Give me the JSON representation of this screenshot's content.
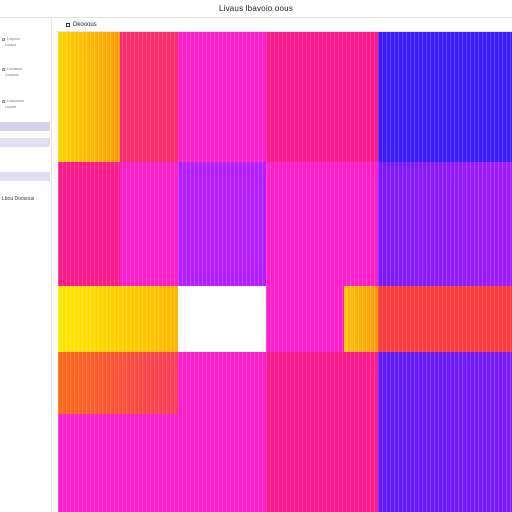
{
  "window": {
    "title": "Livaus lbavoio oous"
  },
  "sidebar": {
    "groups": [
      {
        "label": "Lorpuus",
        "sub": "Lossos"
      },
      {
        "label": "Lovoseos",
        "sub": "Cosouus"
      },
      {
        "label": "Lossousos",
        "sub": "Lsouve"
      }
    ],
    "link": "Lbou Doosous"
  },
  "panel": {
    "title": "Dkooous"
  },
  "heatmap": {
    "stripes": true,
    "cells": [
      {
        "row": 0,
        "col": 0,
        "colors": [
          "#ffd600",
          "#ff9d0a"
        ]
      },
      {
        "row": 0,
        "col": 1,
        "colors": [
          "#ff2a6e",
          "#ff2a6e"
        ]
      },
      {
        "row": 0,
        "col": 2,
        "colors": [
          "#ff1ec8",
          "#ff1ec8"
        ]
      },
      {
        "row": 0,
        "col": 3,
        "colors": [
          "#ff1a8c",
          "#ff1a8c"
        ]
      },
      {
        "row": 0,
        "col": 4,
        "colors": [
          "#3b1aff",
          "#3b1aff"
        ]
      },
      {
        "row": 1,
        "col": 0,
        "colors": [
          "#ff1a8c",
          "#ff1a8c"
        ]
      },
      {
        "row": 1,
        "col": 1,
        "colors": [
          "#ff1ec8",
          "#ff1ec8"
        ]
      },
      {
        "row": 1,
        "col": 2,
        "colors": [
          "#b21eff",
          "#b21eff"
        ]
      },
      {
        "row": 1,
        "col": 3,
        "colors": [
          "#ff1ec8",
          "#ff1ec8"
        ]
      },
      {
        "row": 1,
        "col": 4,
        "colors": [
          "#7a1aff",
          "#a21aff"
        ]
      },
      {
        "row": 2,
        "col": 0,
        "colors": [
          "#ffe800",
          "#ffb800"
        ]
      },
      {
        "row": 2,
        "col": 2,
        "colors": [
          "#ff1ec8",
          "#ff1ec8"
        ]
      },
      {
        "row": 2,
        "col": 3,
        "colors": [
          "#ffc30a",
          "#ff9d0a"
        ]
      },
      {
        "row": 2,
        "col": 4,
        "colors": [
          "#ff3a3a",
          "#ff3a3a"
        ]
      },
      {
        "row": 2,
        "col": 5,
        "colors": [
          "#2618ff",
          "#3b1aff"
        ]
      },
      {
        "row": 3,
        "col": 0,
        "colors": [
          "#ff6a14",
          "#ff3a5a"
        ]
      },
      {
        "row": 3,
        "col": 1,
        "colors": [
          "#ff1ec8",
          "#ff1ec8"
        ]
      },
      {
        "row": 3,
        "col": 2,
        "colors": [
          "#ff1a8c",
          "#ff1a8c"
        ]
      },
      {
        "row": 3,
        "col": 3,
        "colors": [
          "#5e1aff",
          "#7a1aff"
        ]
      },
      {
        "row": 4,
        "col": 0,
        "colors": [
          "#ff1ec8",
          "#ff1ec8"
        ]
      },
      {
        "row": 4,
        "col": 1,
        "colors": [
          "#ff1ec8",
          "#ff1ec8"
        ]
      },
      {
        "row": 4,
        "col": 2,
        "colors": [
          "#ff1a8c",
          "#ff1a8c"
        ]
      },
      {
        "row": 4,
        "col": 3,
        "colors": [
          "#5e1aff",
          "#7a1aff"
        ]
      }
    ]
  }
}
